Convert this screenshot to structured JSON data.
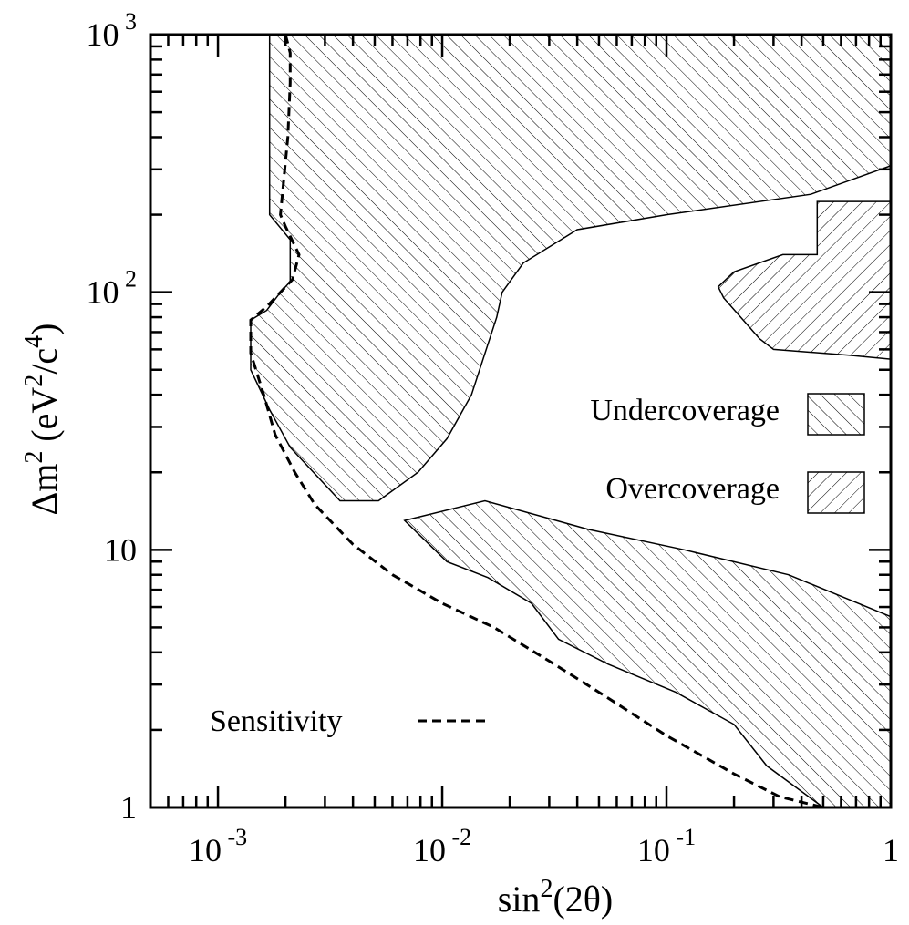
{
  "chart_data": {
    "type": "area",
    "xlabel_main": "sin",
    "xlabel_sup": "2",
    "xlabel_tail": "(2θ)",
    "ylabel_main": "Δm",
    "ylabel_sup": "2",
    "ylabel_mid": " (eV",
    "ylabel_sup2": "2",
    "ylabel_mid2": "/c",
    "ylabel_sup3": "4",
    "ylabel_tail": ")",
    "xscale": "log",
    "yscale": "log",
    "xlim": [
      0.0005,
      1
    ],
    "ylim": [
      1,
      1000
    ],
    "x_ticks": [
      {
        "value": 0.001,
        "base": "10",
        "exp": " -3"
      },
      {
        "value": 0.01,
        "base": "10",
        "exp": " -2"
      },
      {
        "value": 0.1,
        "base": "10",
        "exp": " -1"
      },
      {
        "value": 1,
        "base": "1",
        "exp": ""
      }
    ],
    "y_ticks": [
      {
        "value": 1,
        "base": "1",
        "exp": ""
      },
      {
        "value": 10,
        "base": "10",
        "exp": ""
      },
      {
        "value": 100,
        "base": "10",
        "exp": " 2"
      },
      {
        "value": 1000,
        "base": "10",
        "exp": " 3"
      }
    ],
    "legend": [
      {
        "label": "Undercoverage",
        "hatch": "backslash"
      },
      {
        "label": "Overcoverage",
        "hatch": "forward"
      }
    ],
    "series": [
      {
        "name": "Undercoverage",
        "kind": "region",
        "hatch": "backslash",
        "points": [
          [
            0.0017,
            1000
          ],
          [
            0.0017,
            200
          ],
          [
            0.0021,
            160
          ],
          [
            0.0021,
            110
          ],
          [
            0.0019,
            100
          ],
          [
            0.00165,
            85
          ],
          [
            0.0014,
            78
          ],
          [
            0.0014,
            50
          ],
          [
            0.0017,
            35
          ],
          [
            0.0021,
            25
          ],
          [
            0.0035,
            15.5
          ],
          [
            0.0052,
            15.5
          ],
          [
            0.0078,
            20
          ],
          [
            0.0105,
            27
          ],
          [
            0.0135,
            40
          ],
          [
            0.0175,
            80
          ],
          [
            0.0185,
            100
          ],
          [
            0.023,
            130
          ],
          [
            0.04,
            175
          ],
          [
            0.1,
            200
          ],
          [
            0.44,
            240
          ],
          [
            1,
            310
          ],
          [
            1,
            1000
          ]
        ]
      },
      {
        "name": "Undercoverage",
        "kind": "region",
        "hatch": "backslash",
        "points": [
          [
            0.0068,
            13
          ],
          [
            0.0155,
            15.5
          ],
          [
            0.045,
            12
          ],
          [
            0.12,
            10
          ],
          [
            0.35,
            8
          ],
          [
            1,
            5.5
          ],
          [
            1,
            1
          ],
          [
            0.5,
            1
          ],
          [
            0.28,
            1.45
          ],
          [
            0.2,
            2.1
          ],
          [
            0.11,
            2.8
          ],
          [
            0.055,
            3.6
          ],
          [
            0.033,
            4.5
          ],
          [
            0.025,
            6.2
          ],
          [
            0.016,
            7.8
          ],
          [
            0.0105,
            9
          ],
          [
            0.0068,
            13
          ]
        ]
      },
      {
        "name": "Overcoverage",
        "kind": "region",
        "hatch": "forward",
        "points": [
          [
            0.47,
            225
          ],
          [
            1,
            225
          ],
          [
            1,
            55
          ],
          [
            0.65,
            57
          ],
          [
            0.3,
            60
          ],
          [
            0.26,
            66
          ],
          [
            0.22,
            78
          ],
          [
            0.18,
            95
          ],
          [
            0.17,
            105
          ],
          [
            0.2,
            120
          ],
          [
            0.33,
            140
          ],
          [
            0.47,
            140
          ],
          [
            0.47,
            225
          ]
        ]
      },
      {
        "name": "Sensitivity",
        "kind": "line",
        "dash": true,
        "points": [
          [
            0.002,
            1000
          ],
          [
            0.0021,
            850
          ],
          [
            0.0021,
            650
          ],
          [
            0.00205,
            400
          ],
          [
            0.0019,
            200
          ],
          [
            0.002,
            180
          ],
          [
            0.0023,
            140
          ],
          [
            0.00215,
            112
          ],
          [
            0.0019,
            100
          ],
          [
            0.00165,
            88
          ],
          [
            0.0014,
            78
          ],
          [
            0.0014,
            58
          ],
          [
            0.0016,
            40
          ],
          [
            0.0018,
            28
          ],
          [
            0.0022,
            20
          ],
          [
            0.0027,
            15
          ],
          [
            0.004,
            10.5
          ],
          [
            0.006,
            8
          ],
          [
            0.01,
            6.2
          ],
          [
            0.017,
            5
          ],
          [
            0.03,
            3.7
          ],
          [
            0.05,
            2.8
          ],
          [
            0.1,
            1.9
          ],
          [
            0.2,
            1.35
          ],
          [
            0.32,
            1.1
          ],
          [
            0.5,
            1
          ]
        ]
      }
    ],
    "annotation": {
      "label": "Sensitivity"
    }
  }
}
